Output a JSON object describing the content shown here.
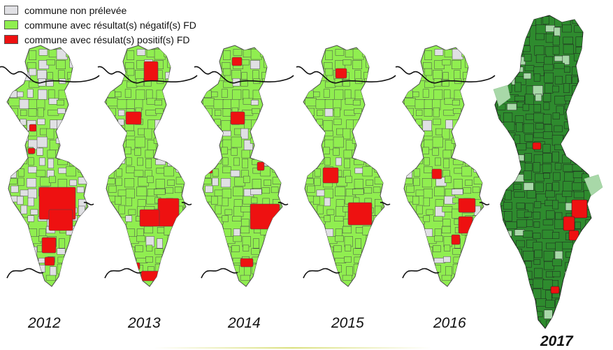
{
  "legend": {
    "items": [
      {
        "label": "commune non prélevée",
        "color": "#e0e0e4"
      },
      {
        "label": "commune avec résultat(s) négatif(s) FD",
        "color": "#90ee50"
      },
      {
        "label": "commune avec résulat(s) positif(s) FD",
        "color": "#ee1111"
      }
    ]
  },
  "colors": {
    "not_sampled": "#e0e0e4",
    "negative": "#90ee50",
    "positive": "#ee1111",
    "negative_2017": "#2e8b2e",
    "not_sampled_2017": "#a8d8a8",
    "commune_border": "#4a4a4a",
    "river": "#111111"
  },
  "maps": [
    {
      "year": "2012",
      "dominant": "mixed_grey"
    },
    {
      "year": "2013",
      "dominant": "negative"
    },
    {
      "year": "2014",
      "dominant": "negative"
    },
    {
      "year": "2015",
      "dominant": "negative"
    },
    {
      "year": "2016",
      "dominant": "negative"
    },
    {
      "year": "2017",
      "dominant": "negative_2017"
    }
  ]
}
